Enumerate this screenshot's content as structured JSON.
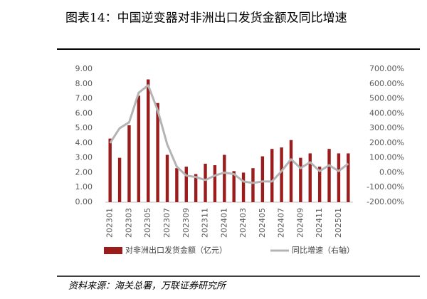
{
  "chart_data": {
    "type": "bar_line",
    "title": "图表14：中国逆变器对非洲出口发货金额及同比增速",
    "source": "资料来源：海关总署，万联证券研究所",
    "categories": [
      "202301",
      null,
      "202303",
      null,
      "202305",
      null,
      "202307",
      null,
      "202309",
      null,
      "202311",
      null,
      "202401",
      null,
      "202403",
      null,
      "202405",
      null,
      "202407",
      null,
      "202409",
      null,
      "202411",
      null,
      "202501",
      null
    ],
    "series": [
      {
        "name": "对非洲出口发货金额（亿元）",
        "type": "bar",
        "color": "#9b1c1c",
        "values": [
          4.3,
          3.0,
          5.2,
          7.2,
          8.3,
          6.7,
          3.2,
          2.3,
          2.4,
          1.9,
          2.6,
          2.5,
          3.2,
          2.1,
          2.0,
          2.3,
          3.1,
          3.6,
          3.7,
          4.2,
          3.0,
          3.3,
          2.4,
          3.6,
          3.3,
          3.3
        ]
      },
      {
        "name": "同比增速（右轴）",
        "type": "line",
        "color": "#b4b4b4",
        "axis": "y2",
        "values": [
          200,
          300,
          340,
          540,
          590,
          420,
          190,
          40,
          -20,
          -30,
          -50,
          -20,
          0,
          -10,
          -60,
          -70,
          -60,
          -60,
          10,
          90,
          30,
          70,
          10,
          50,
          10,
          60
        ]
      }
    ],
    "ylim": [
      0,
      9
    ],
    "yticks": [
      {
        "value": 0,
        "label": "0.00"
      },
      {
        "value": 1,
        "label": "1.00"
      },
      {
        "value": 2,
        "label": "2.00"
      },
      {
        "value": 3,
        "label": "3.00"
      },
      {
        "value": 4,
        "label": "4.00"
      },
      {
        "value": 5,
        "label": "5.00"
      },
      {
        "value": 6,
        "label": "6.00"
      },
      {
        "value": 7,
        "label": "7.00"
      },
      {
        "value": 8,
        "label": "8.00"
      },
      {
        "value": 9,
        "label": "9.00"
      }
    ],
    "y2lim": [
      -200,
      700
    ],
    "y2ticks": [
      {
        "value": -200,
        "label": "-200.00%"
      },
      {
        "value": -100,
        "label": "-100.00%"
      },
      {
        "value": 0,
        "label": "0.00%"
      },
      {
        "value": 100,
        "label": "100.00%"
      },
      {
        "value": 200,
        "label": "200.00%"
      },
      {
        "value": 300,
        "label": "300.00%"
      },
      {
        "value": 400,
        "label": "400.00%"
      },
      {
        "value": 500,
        "label": "500.00%"
      },
      {
        "value": 600,
        "label": "600.00%"
      },
      {
        "value": 700,
        "label": "700.00%"
      }
    ]
  }
}
